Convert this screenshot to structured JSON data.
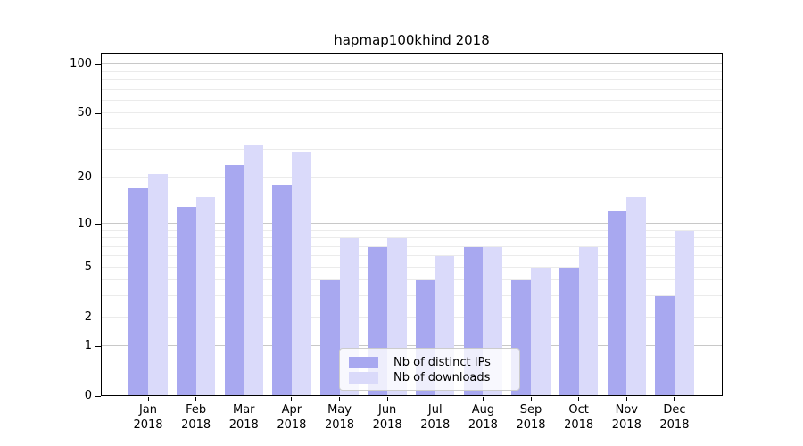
{
  "chart_data": {
    "type": "bar",
    "title": "hapmap100khind 2018",
    "yscale": "log1p",
    "grid": true,
    "legend_position": "lower center",
    "year_label": "2018",
    "months": [
      "Jan",
      "Feb",
      "Mar",
      "Apr",
      "May",
      "Jun",
      "Jul",
      "Aug",
      "Sep",
      "Oct",
      "Nov",
      "Dec"
    ],
    "categories": [
      "Jan 2018",
      "Feb 2018",
      "Mar 2018",
      "Apr 2018",
      "May 2018",
      "Jun 2018",
      "Jul 2018",
      "Aug 2018",
      "Sep 2018",
      "Oct 2018",
      "Nov 2018",
      "Dec 2018"
    ],
    "series": [
      {
        "name": "Nb of distinct IPs",
        "color": "#a8a8f0",
        "values": [
          17,
          13,
          24,
          18,
          4,
          7,
          4,
          7,
          4,
          5,
          12,
          3
        ]
      },
      {
        "name": "Nb of downloads",
        "color": "#dadafa",
        "values": [
          21,
          15,
          32,
          29,
          8,
          8,
          6,
          7,
          5,
          7,
          15,
          9
        ]
      }
    ],
    "y_ticks": [
      100,
      50,
      20,
      10,
      5,
      2,
      1,
      0
    ],
    "y_minor_grid": [
      90,
      80,
      70,
      60,
      50,
      40,
      30,
      20,
      9,
      8,
      7,
      6,
      5,
      4,
      3,
      2
    ],
    "y_major_grid": [
      100,
      10,
      1
    ],
    "ylim": [
      0,
      118
    ],
    "colors": {
      "minor_grid": "#ebebeb",
      "major_grid": "#c8c8c8",
      "spine": "#000000",
      "legend_border": "#cccccc",
      "background": "#ffffff"
    }
  }
}
